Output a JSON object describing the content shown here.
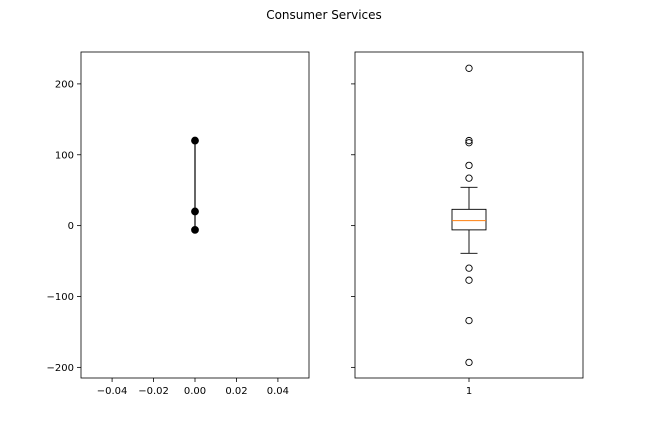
{
  "chart_data": {
    "title": "Consumer Services",
    "colors": {
      "text": "#000000",
      "median": "#ff7f0e",
      "line": "#000000",
      "background": "#ffffff"
    },
    "charts": [
      {
        "type": "line",
        "marker": "filled-circle",
        "x": [
          0,
          0,
          0
        ],
        "y": [
          120,
          20,
          -6
        ],
        "xlim": [
          -0.055,
          0.055
        ],
        "ylim": [
          -215,
          245
        ],
        "xticks": [
          -0.04,
          -0.02,
          0.0,
          0.02,
          0.04
        ],
        "xtick_labels": [
          "−0.04",
          "−0.02",
          "0.00",
          "0.02",
          "0.04"
        ],
        "yticks": [
          200,
          100,
          0,
          -100,
          -200
        ],
        "ytick_labels": [
          "200",
          "100",
          "0",
          "−100",
          "−200"
        ],
        "grid": false,
        "legend": "none"
      },
      {
        "type": "box",
        "category_labels": [
          "1"
        ],
        "xlim": [
          0.5,
          1.5
        ],
        "ylim": [
          -215,
          245
        ],
        "shared_y": true,
        "box": {
          "position": 1,
          "q1": -6,
          "median": 7,
          "q3": 23,
          "whisker_low": -39,
          "whisker_high": 54
        },
        "outliers": [
          222,
          120,
          117,
          85,
          67,
          -60,
          -77,
          -134,
          -193
        ],
        "grid": false,
        "legend": "none"
      }
    ]
  }
}
